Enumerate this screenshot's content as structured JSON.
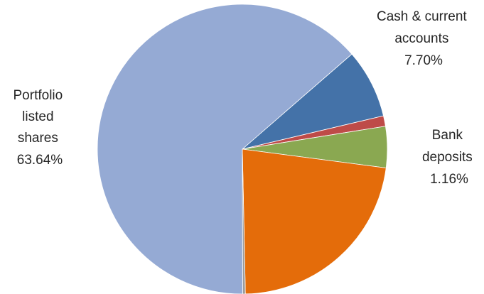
{
  "chart_data": {
    "type": "pie",
    "slices": [
      {
        "label": "Cash & current accounts",
        "value": 7.7,
        "color": "#4472a8"
      },
      {
        "label": "",
        "value": 1.16,
        "color": "#be4b48"
      },
      {
        "label": "",
        "value": 4.6,
        "color": "#8aa851"
      },
      {
        "label": "",
        "value": 22.6,
        "color": "#e46c0a"
      },
      {
        "label": "",
        "value": 0.3,
        "color": "#9b9b9b"
      },
      {
        "label": "Portfolio listed shares",
        "value": 63.64,
        "color": "#95aad4"
      }
    ],
    "data_labels": [
      {
        "lines": [
          "Cash & current",
          "accounts",
          "7.70%"
        ]
      },
      {
        "lines": [
          "Bank",
          "deposits",
          "1.16%"
        ]
      },
      {
        "lines": [
          "Portfolio",
          "listed",
          "shares",
          "63.64%"
        ]
      }
    ]
  }
}
